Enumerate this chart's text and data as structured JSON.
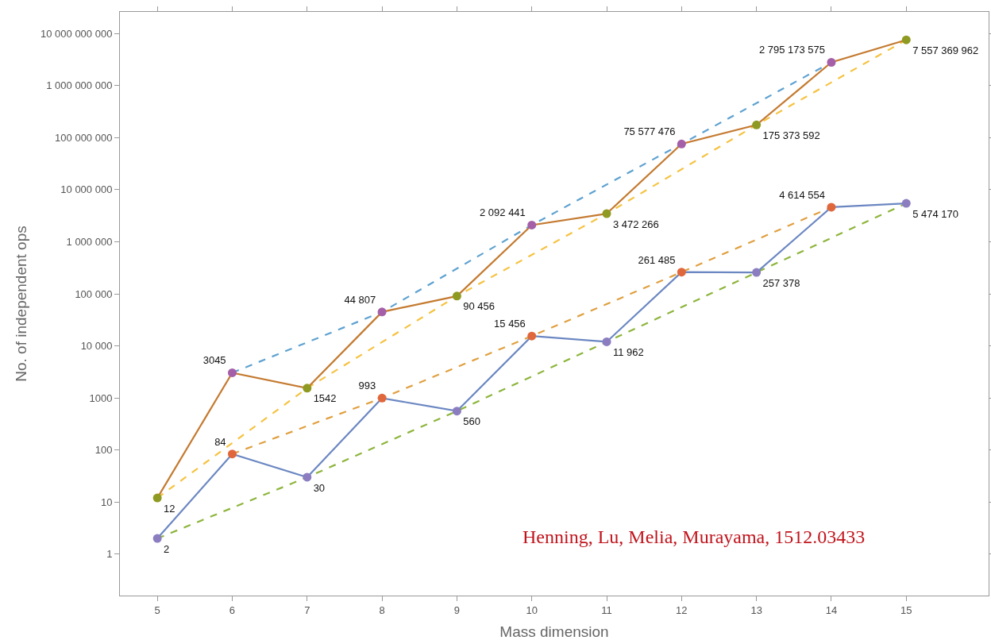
{
  "chart_data": {
    "type": "line",
    "xlabel": "Mass dimension",
    "ylabel": "No. of independent ops",
    "log": "y",
    "grid": false,
    "legend": false,
    "marker": "circle",
    "xlim": [
      4.5,
      16.1
    ],
    "xticks": [
      5,
      6,
      7,
      8,
      9,
      10,
      11,
      12,
      13,
      14,
      15
    ],
    "ylim": [
      0.16,
      26000000000
    ],
    "yticks": [
      1,
      10,
      100,
      1000,
      {
        "value": 10000,
        "label": "10 000"
      },
      {
        "value": 100000,
        "label": "100 000"
      },
      {
        "value": 1000000,
        "label": "1 000 000"
      },
      {
        "value": 10000000,
        "label": "10 000 000"
      },
      {
        "value": 100000000,
        "label": "100 000 000"
      },
      {
        "value": 1000000000,
        "label": "1 000 000 000"
      },
      {
        "value": 10000000000,
        "label": "10 000 000 000"
      }
    ],
    "annotations": [
      "Henning, Lu, Melia, Murayama, 1512.03433"
    ],
    "series": [
      {
        "color": "#5fa2d0",
        "line_style": "dashed",
        "marker": "none",
        "x": [
          6,
          8,
          10,
          12,
          14
        ],
        "values": [
          3045,
          44807,
          2092441,
          75577476,
          2795173575
        ]
      },
      {
        "color": "#f5c342",
        "line_style": "dashed",
        "marker": "none",
        "x": [
          5,
          7,
          9,
          11,
          13,
          15
        ],
        "values": [
          12,
          1542,
          90456,
          3472266,
          175373592,
          7557369962
        ]
      },
      {
        "color": "#e0a040",
        "line_style": "dashed",
        "marker": "none",
        "x": [
          6,
          8,
          10,
          12,
          14
        ],
        "values": [
          84,
          993,
          15456,
          261485,
          4614554
        ]
      },
      {
        "color": "#8db53c",
        "line_style": "dashed",
        "marker": "none",
        "x": [
          5,
          7,
          9,
          11,
          13,
          15
        ],
        "values": [
          2,
          30,
          560,
          11962,
          257378,
          5474170
        ]
      },
      {
        "color": "#c47a30",
        "line_style": "solid",
        "x": [
          5,
          6,
          7,
          8,
          9,
          10,
          11,
          12,
          13,
          14,
          15
        ],
        "values": [
          12,
          3045,
          1542,
          44807,
          90456,
          2092441,
          3472266,
          75577476,
          175373592,
          2795173575,
          7557369962
        ],
        "colors": [
          "#8f9a22",
          "#a45fa8",
          "#8f9a22",
          "#a45fa8",
          "#8f9a22",
          "#a45fa8",
          "#8f9a22",
          "#a45fa8",
          "#8f9a22",
          "#a45fa8",
          "#8f9a22"
        ],
        "value_labels": [
          "12",
          "3045",
          "1542",
          "44 807",
          "90 456",
          "2 092 441",
          "3 472 266",
          "75 577 476",
          "175 373 592",
          "2 795 173 575",
          "7 557 369 962"
        ]
      },
      {
        "color": "#6b87c2",
        "line_style": "solid",
        "x": [
          5,
          6,
          7,
          8,
          9,
          10,
          11,
          12,
          13,
          14,
          15
        ],
        "values": [
          2,
          84,
          30,
          993,
          560,
          15456,
          11962,
          261485,
          257378,
          4614554,
          5474170
        ],
        "colors": [
          "#8b7dc0",
          "#e0673c",
          "#8b7dc0",
          "#e0673c",
          "#8b7dc0",
          "#e0673c",
          "#8b7dc0",
          "#e0673c",
          "#8b7dc0",
          "#e0673c",
          "#8b7dc0"
        ],
        "value_labels": [
          "2",
          "84",
          "30",
          "993",
          "560",
          "15 456",
          "11 962",
          "261 485",
          "257 378",
          "4 614 554",
          "5 474 170"
        ]
      }
    ]
  }
}
